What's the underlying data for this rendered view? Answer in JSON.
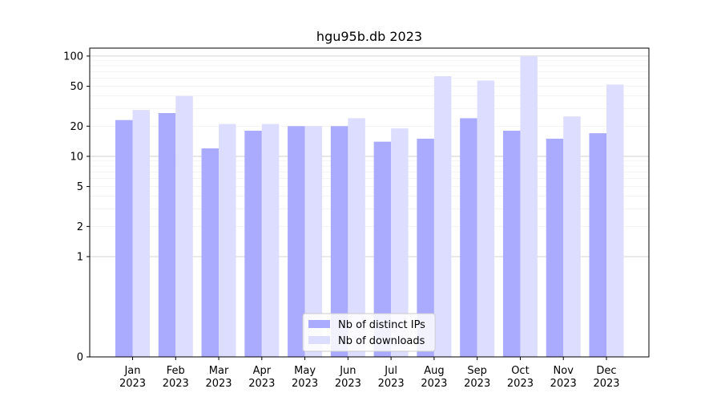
{
  "chart_data": {
    "type": "bar",
    "title": "hgu95b.db 2023",
    "xlabel": "",
    "ylabel": "",
    "y_scale": "symlog",
    "ylim": [
      0,
      120
    ],
    "y_ticks": [
      0,
      1,
      2,
      5,
      10,
      20,
      50,
      100
    ],
    "y_tick_labels": [
      "0",
      "1",
      "2",
      "5",
      "10",
      "20",
      "50",
      "100"
    ],
    "grid": true,
    "legend_position": "bottom-center",
    "categories": [
      "Jan\n2023",
      "Feb\n2023",
      "Mar\n2023",
      "Apr\n2023",
      "May\n2023",
      "Jun\n2023",
      "Jul\n2023",
      "Aug\n2023",
      "Sep\n2023",
      "Oct\n2023",
      "Nov\n2023",
      "Dec\n2023"
    ],
    "series": [
      {
        "name": "Nb of distinct IPs",
        "color": "#aaaaff",
        "values": [
          23,
          27,
          12,
          18,
          20,
          20,
          14,
          15,
          24,
          18,
          15,
          17
        ]
      },
      {
        "name": "Nb of downloads",
        "color": "#ddddff",
        "values": [
          29,
          40,
          21,
          21,
          20,
          24,
          19,
          63,
          57,
          100,
          25,
          52
        ]
      }
    ]
  }
}
